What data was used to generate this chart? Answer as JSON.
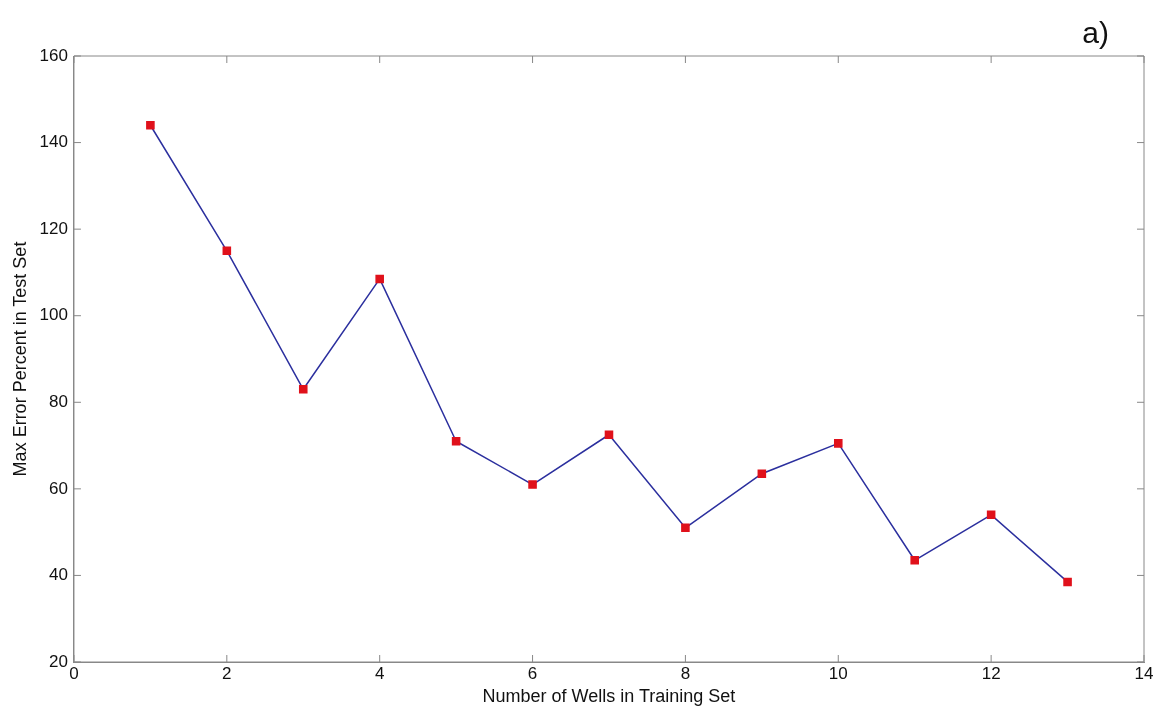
{
  "chart_data": {
    "type": "line",
    "annotations": [
      "a)"
    ],
    "xlabel": "Number of Wells in Training Set",
    "ylabel": "Max Error Percent in Test Set",
    "x": [
      1,
      2,
      3,
      4,
      5,
      6,
      7,
      8,
      9,
      10,
      11,
      12,
      13
    ],
    "series": [
      {
        "color": "#2b2f9e",
        "colors": [
          "#e0111b",
          "#e0111b",
          "#e0111b",
          "#e0111b",
          "#e0111b",
          "#e0111b",
          "#e0111b",
          "#e0111b",
          "#e0111b",
          "#e0111b",
          "#e0111b",
          "#e0111b",
          "#e0111b"
        ],
        "values": [
          144,
          115,
          83,
          108.5,
          71,
          61,
          72.5,
          51,
          63.5,
          70.5,
          43.5,
          54,
          38.5
        ]
      }
    ],
    "xlim": [
      0,
      14
    ],
    "xticks": [
      0,
      2,
      4,
      6,
      8,
      10,
      12,
      14
    ],
    "ylim": [
      20,
      160
    ],
    "yticks": [
      20,
      40,
      60,
      80,
      100,
      120,
      140,
      160
    ],
    "grid": false,
    "legend": false,
    "marker": "square",
    "line_style": "solid"
  }
}
